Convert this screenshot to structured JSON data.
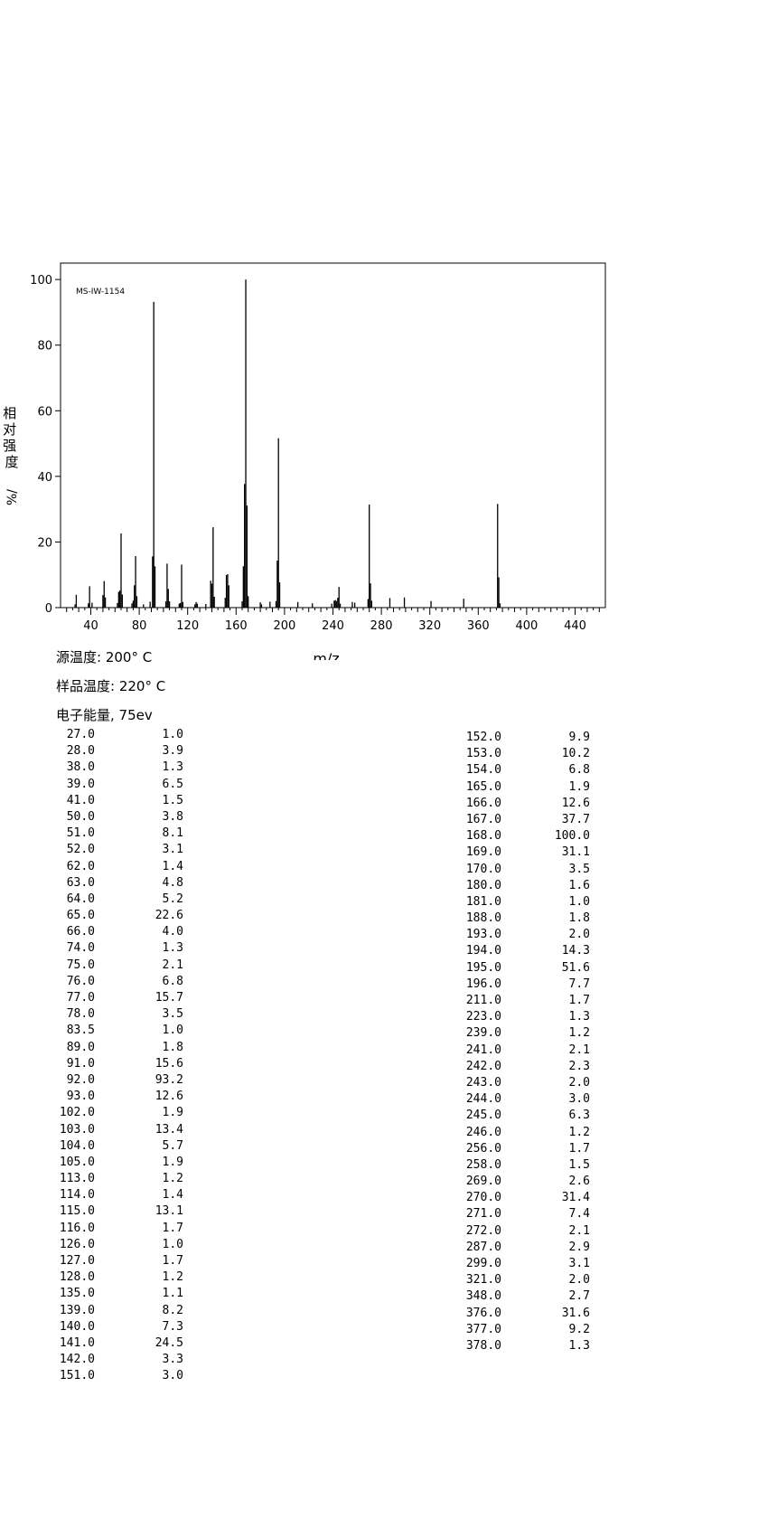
{
  "chart_data": {
    "type": "bar",
    "title": "MS-IW-1154",
    "xlabel": "m/z",
    "ylabel": "相对强度 %/",
    "xlim": [
      15,
      465
    ],
    "ylim": [
      0,
      105
    ],
    "x_ticks": [
      40,
      80,
      120,
      160,
      200,
      240,
      280,
      320,
      360,
      400,
      440
    ],
    "y_ticks": [
      0,
      20,
      40,
      60,
      80,
      100
    ],
    "grid": false,
    "peaks": [
      {
        "mz": "27.0",
        "ab": "1.0"
      },
      {
        "mz": "28.0",
        "ab": "3.9"
      },
      {
        "mz": "38.0",
        "ab": "1.3"
      },
      {
        "mz": "39.0",
        "ab": "6.5"
      },
      {
        "mz": "41.0",
        "ab": "1.5"
      },
      {
        "mz": "50.0",
        "ab": "3.8"
      },
      {
        "mz": "51.0",
        "ab": "8.1"
      },
      {
        "mz": "52.0",
        "ab": "3.1"
      },
      {
        "mz": "62.0",
        "ab": "1.4"
      },
      {
        "mz": "63.0",
        "ab": "4.8"
      },
      {
        "mz": "64.0",
        "ab": "5.2"
      },
      {
        "mz": "65.0",
        "ab": "22.6"
      },
      {
        "mz": "66.0",
        "ab": "4.0"
      },
      {
        "mz": "74.0",
        "ab": "1.3"
      },
      {
        "mz": "75.0",
        "ab": "2.1"
      },
      {
        "mz": "76.0",
        "ab": "6.8"
      },
      {
        "mz": "77.0",
        "ab": "15.7"
      },
      {
        "mz": "78.0",
        "ab": "3.5"
      },
      {
        "mz": "83.5",
        "ab": "1.0"
      },
      {
        "mz": "89.0",
        "ab": "1.8"
      },
      {
        "mz": "91.0",
        "ab": "15.6"
      },
      {
        "mz": "92.0",
        "ab": "93.2"
      },
      {
        "mz": "93.0",
        "ab": "12.6"
      },
      {
        "mz": "102.0",
        "ab": "1.9"
      },
      {
        "mz": "103.0",
        "ab": "13.4"
      },
      {
        "mz": "104.0",
        "ab": "5.7"
      },
      {
        "mz": "105.0",
        "ab": "1.9"
      },
      {
        "mz": "113.0",
        "ab": "1.2"
      },
      {
        "mz": "114.0",
        "ab": "1.4"
      },
      {
        "mz": "115.0",
        "ab": "13.1"
      },
      {
        "mz": "116.0",
        "ab": "1.7"
      },
      {
        "mz": "126.0",
        "ab": "1.0"
      },
      {
        "mz": "127.0",
        "ab": "1.7"
      },
      {
        "mz": "128.0",
        "ab": "1.2"
      },
      {
        "mz": "135.0",
        "ab": "1.1"
      },
      {
        "mz": "139.0",
        "ab": "8.2"
      },
      {
        "mz": "140.0",
        "ab": "7.3"
      },
      {
        "mz": "141.0",
        "ab": "24.5"
      },
      {
        "mz": "142.0",
        "ab": "3.3"
      },
      {
        "mz": "151.0",
        "ab": "3.0"
      },
      {
        "mz": "152.0",
        "ab": "9.9"
      },
      {
        "mz": "153.0",
        "ab": "10.2"
      },
      {
        "mz": "154.0",
        "ab": "6.8"
      },
      {
        "mz": "165.0",
        "ab": "1.9"
      },
      {
        "mz": "166.0",
        "ab": "12.6"
      },
      {
        "mz": "167.0",
        "ab": "37.7"
      },
      {
        "mz": "168.0",
        "ab": "100.0"
      },
      {
        "mz": "169.0",
        "ab": "31.1"
      },
      {
        "mz": "170.0",
        "ab": "3.5"
      },
      {
        "mz": "180.0",
        "ab": "1.6"
      },
      {
        "mz": "181.0",
        "ab": "1.0"
      },
      {
        "mz": "188.0",
        "ab": "1.8"
      },
      {
        "mz": "193.0",
        "ab": "2.0"
      },
      {
        "mz": "194.0",
        "ab": "14.3"
      },
      {
        "mz": "195.0",
        "ab": "51.6"
      },
      {
        "mz": "196.0",
        "ab": "7.7"
      },
      {
        "mz": "211.0",
        "ab": "1.7"
      },
      {
        "mz": "223.0",
        "ab": "1.3"
      },
      {
        "mz": "239.0",
        "ab": "1.2"
      },
      {
        "mz": "241.0",
        "ab": "2.1"
      },
      {
        "mz": "242.0",
        "ab": "2.3"
      },
      {
        "mz": "243.0",
        "ab": "2.0"
      },
      {
        "mz": "244.0",
        "ab": "3.0"
      },
      {
        "mz": "245.0",
        "ab": "6.3"
      },
      {
        "mz": "246.0",
        "ab": "1.2"
      },
      {
        "mz": "256.0",
        "ab": "1.7"
      },
      {
        "mz": "258.0",
        "ab": "1.5"
      },
      {
        "mz": "269.0",
        "ab": "2.6"
      },
      {
        "mz": "270.0",
        "ab": "31.4"
      },
      {
        "mz": "271.0",
        "ab": "7.4"
      },
      {
        "mz": "272.0",
        "ab": "2.1"
      },
      {
        "mz": "287.0",
        "ab": "2.9"
      },
      {
        "mz": "299.0",
        "ab": "3.1"
      },
      {
        "mz": "321.0",
        "ab": "2.0"
      },
      {
        "mz": "348.0",
        "ab": "2.7"
      },
      {
        "mz": "376.0",
        "ab": "31.6"
      },
      {
        "mz": "377.0",
        "ab": "9.2"
      },
      {
        "mz": "378.0",
        "ab": "1.3"
      }
    ]
  },
  "conditions": {
    "source_temp": "源温度: 200° C",
    "sample_temp": "样品温度: 220° C",
    "electron_energy": "电子能量, 75ev"
  }
}
